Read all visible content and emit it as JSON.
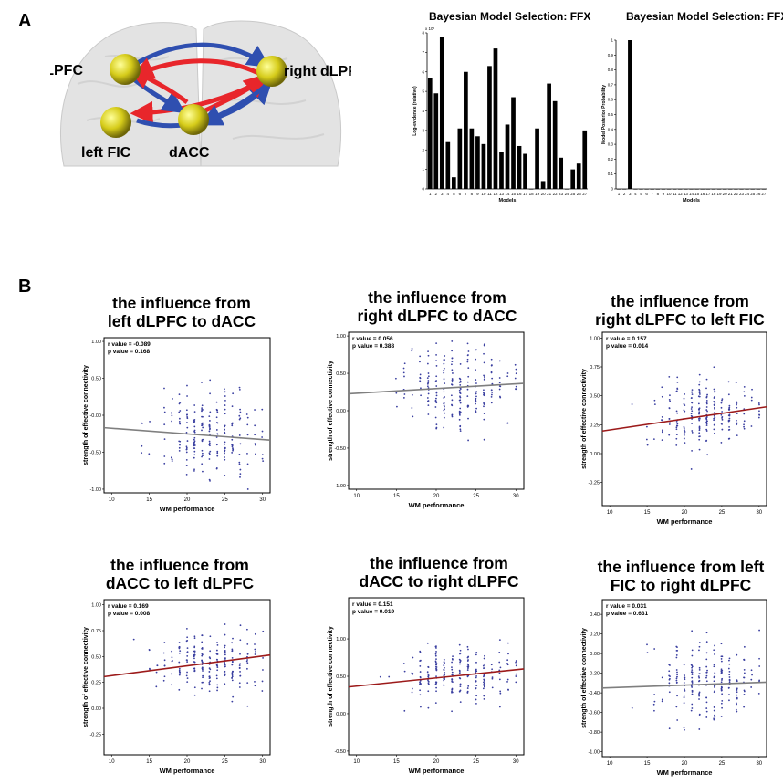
{
  "panel_a": {
    "letter": "A",
    "nodes": [
      {
        "id": "ldlpfc",
        "label": "left dLPFC"
      },
      {
        "id": "rdlpfc",
        "label": "right dLPFC"
      },
      {
        "id": "lfic",
        "label": "left FIC"
      },
      {
        "id": "dacc",
        "label": "dACC"
      }
    ],
    "arrow_colors": {
      "red": "#e8262b",
      "blue": "#2f4fb0",
      "node": "#d6cc1a"
    }
  },
  "panel_b": {
    "letter": "B"
  },
  "chart_data": [
    {
      "id": "bms-log-evidence",
      "type": "bar",
      "title": "Bayesian Model Selection: FFX",
      "xlabel": "Models",
      "ylabel": "Log-evidence (relative)",
      "y_multiplier": "x 10³",
      "ylim": [
        0,
        8
      ],
      "yticks": [
        0,
        1,
        2,
        3,
        4,
        5,
        6,
        7,
        8
      ],
      "categories": [
        "1",
        "2",
        "3",
        "4",
        "5",
        "6",
        "7",
        "8",
        "9",
        "10",
        "11",
        "12",
        "13",
        "14",
        "15",
        "16",
        "17",
        "18",
        "19",
        "20",
        "21",
        "22",
        "23",
        "24",
        "25",
        "26",
        "27"
      ],
      "values": [
        5.7,
        4.9,
        7.8,
        2.4,
        0.6,
        3.1,
        6.0,
        3.1,
        2.7,
        2.3,
        6.3,
        7.2,
        1.9,
        3.3,
        4.7,
        2.2,
        1.8,
        0.0,
        3.1,
        0.4,
        5.4,
        4.5,
        1.6,
        0.0,
        1.0,
        1.3,
        3.0
      ]
    },
    {
      "id": "bms-posterior",
      "type": "bar",
      "title": "Bayesian Model Selection: FFX",
      "xlabel": "Models",
      "ylabel": "Model Posterior Probability",
      "ylim": [
        0,
        1
      ],
      "yticks": [
        0,
        0.1,
        0.2,
        0.3,
        0.4,
        0.5,
        0.6,
        0.7,
        0.8,
        0.9,
        1
      ],
      "categories": [
        "1",
        "2",
        "3",
        "4",
        "5",
        "6",
        "7",
        "8",
        "9",
        "10",
        "11",
        "12",
        "13",
        "14",
        "15",
        "16",
        "17",
        "18",
        "19",
        "20",
        "21",
        "22",
        "23",
        "24",
        "25",
        "26",
        "27"
      ],
      "values": [
        0,
        0,
        1,
        0,
        0,
        0,
        0,
        0,
        0,
        0,
        0,
        0,
        0,
        0,
        0,
        0,
        0,
        0,
        0,
        0,
        0,
        0,
        0,
        0,
        0,
        0,
        0
      ]
    },
    {
      "id": "sp1",
      "type": "scatter",
      "title_lines": [
        "the influence from",
        "left dLPFC to dACC"
      ],
      "xlabel": "WM performance",
      "ylabel": "strength of effective connectivity",
      "r_text": "r value = -0.089",
      "p_text": "p value = 0.168",
      "xlim": [
        9,
        31
      ],
      "xticks": [
        10,
        15,
        20,
        25,
        30
      ],
      "ylim": [
        -1.05,
        1.05
      ],
      "yticks": [
        -1.0,
        -0.5,
        0.0,
        0.5,
        1.0
      ],
      "ytick_labels": [
        "-1.00",
        "-0.50",
        "-0.00",
        "0.50",
        "1.00"
      ],
      "fit": {
        "slope": -0.0076,
        "intercept": -0.1,
        "color": "#7f7f7f"
      },
      "cloud": {
        "x_center": 23,
        "x_spread": 3.5,
        "y_center": -0.25,
        "y_spread": 0.28,
        "seed": 11
      }
    },
    {
      "id": "sp2",
      "type": "scatter",
      "title_lines": [
        "the influence from",
        "right dLPFC to dACC"
      ],
      "xlabel": "WM performance",
      "ylabel": "strength of effective connectivity",
      "r_text": "r value = 0.056",
      "p_text": "p value = 0.388",
      "xlim": [
        9,
        31
      ],
      "xticks": [
        10,
        15,
        20,
        25,
        30
      ],
      "ylim": [
        -1.05,
        1.05
      ],
      "yticks": [
        -1.0,
        -0.5,
        0.0,
        0.5,
        1.0
      ],
      "ytick_labels": [
        "-1.00",
        "-0.50",
        "0.00",
        "0.50",
        "1.00"
      ],
      "fit": {
        "slope": 0.0063,
        "intercept": 0.17,
        "color": "#7f7f7f"
      },
      "cloud": {
        "x_center": 23,
        "x_spread": 3.5,
        "y_center": 0.3,
        "y_spread": 0.28,
        "seed": 23
      }
    },
    {
      "id": "sp3",
      "type": "scatter",
      "title_lines": [
        "the influence from",
        "right dLPFC to left FIC"
      ],
      "xlabel": "WM performance",
      "ylabel": "strength of effective connectivity",
      "r_text": "r value = 0.157",
      "p_text": "p value = 0.014",
      "xlim": [
        9,
        31
      ],
      "xticks": [
        10,
        15,
        20,
        25,
        30
      ],
      "ylim": [
        -0.45,
        1.05
      ],
      "yticks": [
        -0.25,
        0.0,
        0.25,
        0.5,
        0.75,
        1.0
      ],
      "ytick_labels": [
        "-0.25",
        "0.00",
        "0.25",
        "0.50",
        "0.75",
        "1.00"
      ],
      "fit": {
        "slope": 0.0095,
        "intercept": 0.11,
        "color": "#9c1a1a"
      },
      "cloud": {
        "x_center": 23,
        "x_spread": 3.5,
        "y_center": 0.33,
        "y_spread": 0.16,
        "seed": 37
      }
    },
    {
      "id": "sp4",
      "type": "scatter",
      "title_lines": [
        "the influence from",
        "dACC to left dLPFC"
      ],
      "xlabel": "WM performance",
      "ylabel": "strength of effective connectivity",
      "r_text": "r value = 0.169",
      "p_text": "p value = 0.008",
      "xlim": [
        9,
        31
      ],
      "xticks": [
        10,
        15,
        20,
        25,
        30
      ],
      "ylim": [
        -0.45,
        1.05
      ],
      "yticks": [
        -0.25,
        0.0,
        0.25,
        0.5,
        0.75,
        1.0
      ],
      "ytick_labels": [
        "-0.25",
        "0.00",
        "0.25",
        "0.50",
        "0.75",
        "1.00"
      ],
      "fit": {
        "slope": 0.0095,
        "intercept": 0.22,
        "color": "#9c1a1a"
      },
      "cloud": {
        "x_center": 23,
        "x_spread": 3.5,
        "y_center": 0.44,
        "y_spread": 0.16,
        "seed": 41
      }
    },
    {
      "id": "sp5",
      "type": "scatter",
      "title_lines": [
        "the influence from",
        "dACC to right dLPFC"
      ],
      "xlabel": "WM performance",
      "ylabel": "strength of effective connectivity",
      "r_text": "r value = 0.151",
      "p_text": "p value = 0.019",
      "xlim": [
        9,
        31
      ],
      "xticks": [
        10,
        15,
        20,
        25,
        30
      ],
      "ylim": [
        -0.55,
        1.55
      ],
      "yticks": [
        -0.5,
        0.0,
        0.5,
        1.0
      ],
      "ytick_labels": [
        "-0.50",
        "0.00",
        "0.50",
        "1.00"
      ],
      "fit": {
        "slope": 0.0109,
        "intercept": 0.26,
        "color": "#9c1a1a"
      },
      "cloud": {
        "x_center": 23,
        "x_spread": 3.5,
        "y_center": 0.52,
        "y_spread": 0.2,
        "seed": 53
      }
    },
    {
      "id": "sp6",
      "type": "scatter",
      "title_lines": [
        "the influence from left",
        "FIC to right dLPFC"
      ],
      "xlabel": "WM performance",
      "ylabel": "strength of effective connectivity",
      "r_text": "r value = 0.031",
      "p_text": "p value = 0.631",
      "xlim": [
        9,
        31
      ],
      "xticks": [
        10,
        15,
        20,
        25,
        30
      ],
      "ylim": [
        -1.05,
        0.55
      ],
      "yticks": [
        -1.0,
        -0.8,
        -0.6,
        -0.4,
        -0.2,
        0.0,
        0.2,
        0.4
      ],
      "ytick_labels": [
        "-1.00",
        "-0.80",
        "-0.60",
        "-0.40",
        "-0.20",
        "0.00",
        "0.20",
        "0.40"
      ],
      "fit": {
        "slope": 0.0027,
        "intercept": -0.375,
        "color": "#7f7f7f"
      },
      "cloud": {
        "x_center": 23,
        "x_spread": 3.5,
        "y_center": -0.3,
        "y_spread": 0.2,
        "seed": 67
      }
    }
  ]
}
